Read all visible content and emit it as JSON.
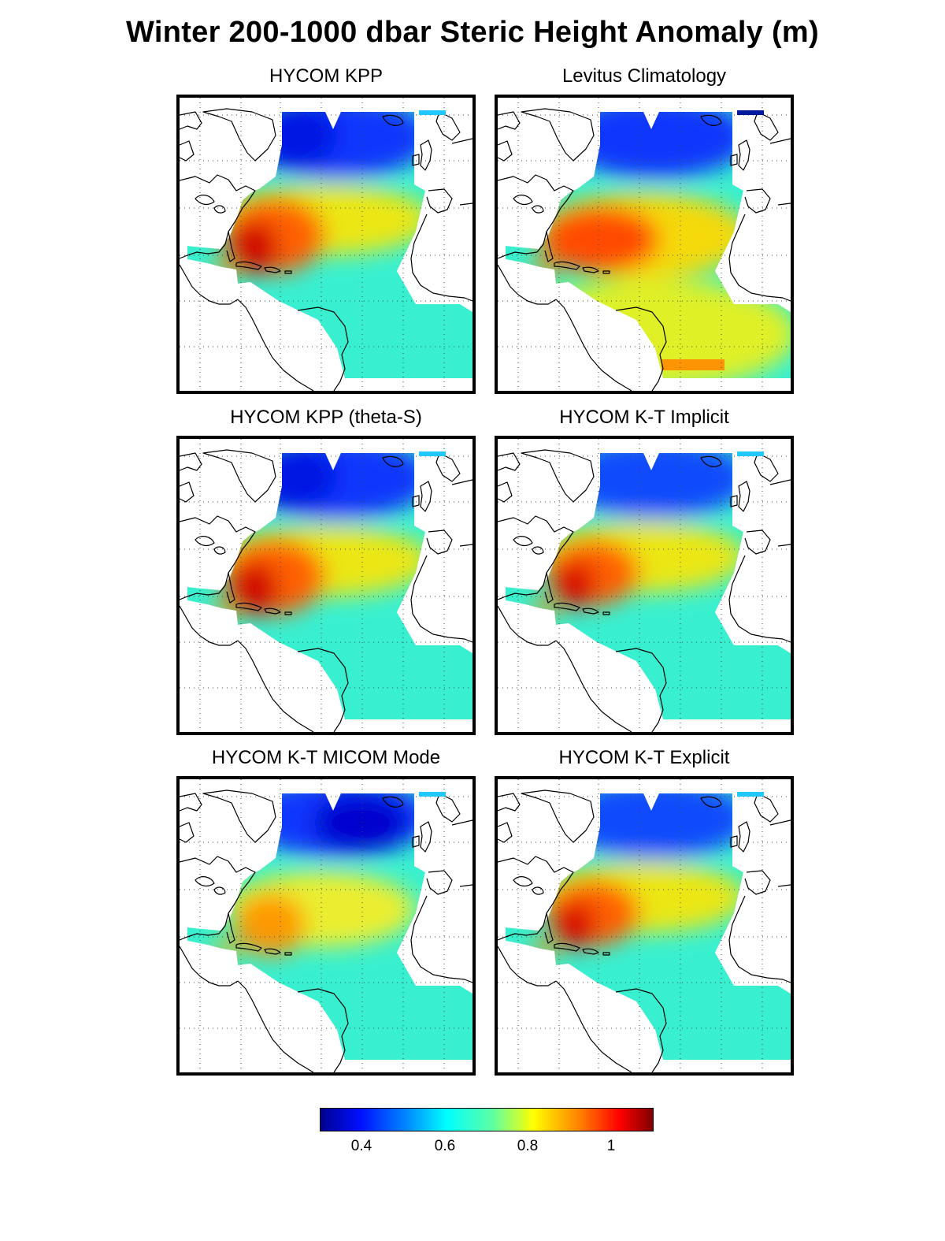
{
  "title": "Winter 200-1000 dbar Steric Height Anomaly (m)",
  "panels": [
    {
      "title": "HYCOM KPP",
      "variant": "kpp"
    },
    {
      "title": "Levitus Climatology",
      "variant": "levitus"
    },
    {
      "title": "HYCOM KPP (theta-S)",
      "variant": "kpp"
    },
    {
      "title": "HYCOM K-T Implicit",
      "variant": "kt"
    },
    {
      "title": "HYCOM K-T MICOM Mode",
      "variant": "micom"
    },
    {
      "title": "HYCOM K-T Explicit",
      "variant": "kt"
    }
  ],
  "colorbar": {
    "ticks": [
      "0.4",
      "0.6",
      "0.8",
      "1"
    ],
    "colormap": "jet",
    "colors": [
      "#00008f",
      "#0010ff",
      "#0080ff",
      "#00ffff",
      "#60ffa0",
      "#ffff00",
      "#ff8000",
      "#ff0000",
      "#800000"
    ]
  },
  "map": {
    "region": "North Atlantic",
    "grid": "dotted",
    "coastlines": true
  }
}
